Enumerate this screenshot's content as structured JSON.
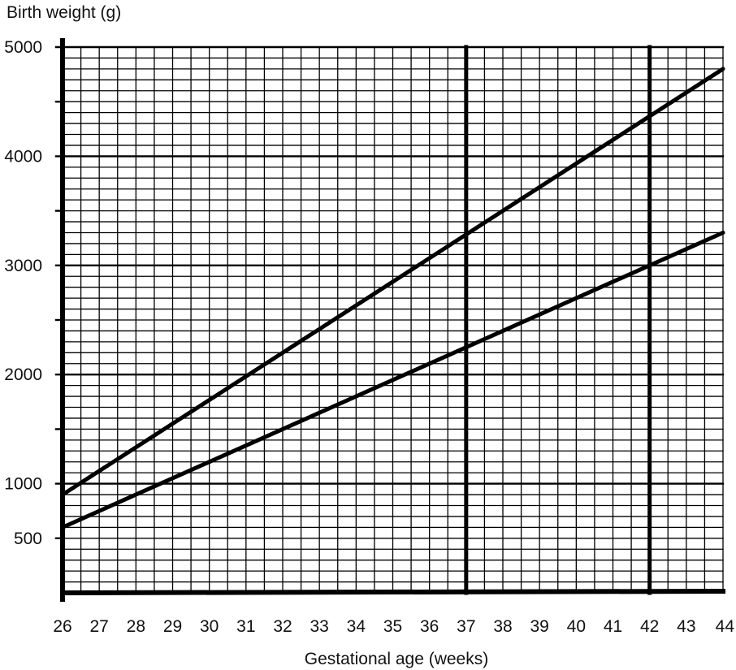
{
  "chart_data": {
    "type": "line",
    "title": "",
    "xlabel": "Gestational age (weeks)",
    "ylabel": "Birth weight (g)",
    "xlim": [
      26,
      44
    ],
    "ylim": [
      0,
      5000
    ],
    "x_ticks": [
      26,
      27,
      28,
      29,
      30,
      31,
      32,
      33,
      34,
      35,
      36,
      37,
      38,
      39,
      40,
      41,
      42,
      43,
      44
    ],
    "x_tick_labels": [
      "26",
      "27",
      "28",
      "29",
      "30",
      "31",
      "32",
      "33",
      "34",
      "35",
      "36",
      "37",
      "38",
      "39",
      "40",
      "41",
      "42",
      "43",
      "44"
    ],
    "y_tick_labels": [
      {
        "value": 5000,
        "label": "5000"
      },
      {
        "value": 4000,
        "label": "4000"
      },
      {
        "value": 3000,
        "label": "3000"
      },
      {
        "value": 2000,
        "label": "2000"
      },
      {
        "value": 1000,
        "label": "1000"
      },
      {
        "value": 500,
        "label": "500"
      }
    ],
    "grid": true,
    "grid_minor_x": 0.5,
    "grid_minor_y": 100,
    "reference_lines_x": [
      37,
      42
    ],
    "series": [
      {
        "x": [
          26,
          44
        ],
        "y": [
          900,
          4800
        ]
      },
      {
        "x": [
          26,
          44
        ],
        "y": [
          600,
          3300
        ]
      }
    ],
    "colors": {
      "line": "#000000",
      "grid": "#000000",
      "background": "#ffffff"
    }
  }
}
